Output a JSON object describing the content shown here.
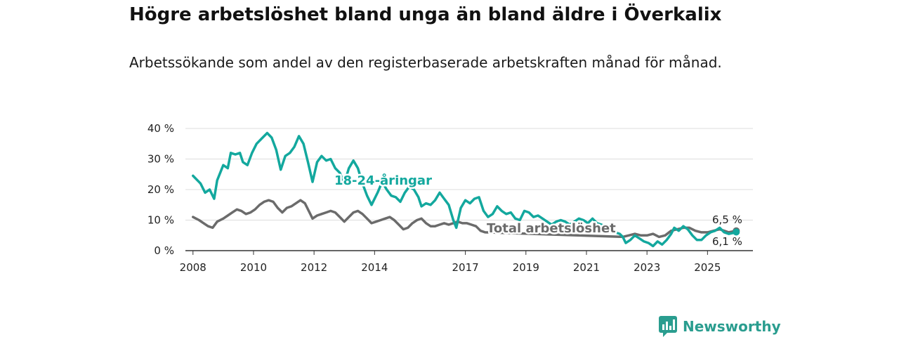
{
  "title": "Högre arbetslöshet bland unga än bland äldre i Överkalix",
  "subtitle": "Arbetssökande som andel av den registerbaserade arbetskraften månad för månad.",
  "brand": {
    "name": "Newsworthy"
  },
  "colors": {
    "youth": "#13a89e",
    "total": "#6b6b6b",
    "grid": "#dddddd",
    "axis": "#333333",
    "brand": "#2a9d8f"
  },
  "chart_data": {
    "type": "line",
    "title": "Högre arbetslöshet bland unga än bland äldre i Överkalix",
    "xlabel": "",
    "ylabel": "",
    "xlim": [
      2007.75,
      2026.5
    ],
    "ylim": [
      0,
      40
    ],
    "y_ticks": [
      0,
      10,
      20,
      30,
      40
    ],
    "y_tick_labels": [
      "0 %",
      "10 %",
      "20 %",
      "30 %",
      "40 %"
    ],
    "x_ticks": [
      2008,
      2010,
      2012,
      2014,
      2017,
      2019,
      2021,
      2023,
      2025
    ],
    "x_tick_labels": [
      "2008",
      "2010",
      "2012",
      "2014",
      "2017",
      "2019",
      "2021",
      "2023",
      "2025"
    ],
    "series": [
      {
        "name": "18-24-åringar",
        "label": "18-24-åringar",
        "end_value": 6.1,
        "end_label": "6,1 %",
        "points": [
          [
            2008.0,
            24.5
          ],
          [
            2008.25,
            22.0
          ],
          [
            2008.4,
            19.0
          ],
          [
            2008.55,
            20.0
          ],
          [
            2008.7,
            17.0
          ],
          [
            2008.8,
            23.0
          ],
          [
            2009.0,
            28.0
          ],
          [
            2009.15,
            27.0
          ],
          [
            2009.25,
            32.0
          ],
          [
            2009.4,
            31.5
          ],
          [
            2009.55,
            32.0
          ],
          [
            2009.65,
            29.0
          ],
          [
            2009.8,
            28.0
          ],
          [
            2009.95,
            32.0
          ],
          [
            2010.1,
            35.0
          ],
          [
            2010.3,
            37.0
          ],
          [
            2010.45,
            38.5
          ],
          [
            2010.6,
            37.0
          ],
          [
            2010.75,
            33.0
          ],
          [
            2010.9,
            26.5
          ],
          [
            2011.05,
            31.0
          ],
          [
            2011.2,
            32.0
          ],
          [
            2011.35,
            34.0
          ],
          [
            2011.5,
            37.5
          ],
          [
            2011.65,
            35.0
          ],
          [
            2011.8,
            29.0
          ],
          [
            2011.95,
            22.5
          ],
          [
            2012.1,
            29.0
          ],
          [
            2012.25,
            31.0
          ],
          [
            2012.4,
            29.5
          ],
          [
            2012.55,
            30.0
          ],
          [
            2012.7,
            27.0
          ],
          [
            2012.85,
            25.5
          ],
          [
            2013.0,
            22.0
          ],
          [
            2013.15,
            27.0
          ],
          [
            2013.3,
            29.5
          ],
          [
            2013.45,
            27.0
          ],
          [
            2013.6,
            22.0
          ],
          [
            2013.75,
            18.0
          ],
          [
            2013.9,
            15.0
          ],
          [
            2014.1,
            19.0
          ],
          [
            2014.25,
            22.5
          ],
          [
            2014.4,
            20.0
          ],
          [
            2014.55,
            18.0
          ],
          [
            2014.7,
            17.5
          ],
          [
            2014.85,
            16.0
          ],
          [
            2015.0,
            19.0
          ],
          [
            2015.15,
            21.0
          ],
          [
            2015.3,
            20.0
          ],
          [
            2015.45,
            17.5
          ],
          [
            2015.55,
            14.5
          ],
          [
            2015.7,
            15.5
          ],
          [
            2015.85,
            15.0
          ],
          [
            2016.0,
            16.5
          ],
          [
            2016.15,
            19.0
          ],
          [
            2016.3,
            17.0
          ],
          [
            2016.45,
            15.0
          ],
          [
            2016.6,
            10.0
          ],
          [
            2016.7,
            7.5
          ],
          [
            2016.85,
            14.0
          ],
          [
            2017.0,
            16.5
          ],
          [
            2017.15,
            15.5
          ],
          [
            2017.3,
            17.0
          ],
          [
            2017.45,
            17.5
          ],
          [
            2017.6,
            13.0
          ],
          [
            2017.75,
            11.0
          ],
          [
            2017.9,
            12.0
          ],
          [
            2018.05,
            14.5
          ],
          [
            2018.2,
            13.0
          ],
          [
            2018.35,
            12.0
          ],
          [
            2018.5,
            12.5
          ],
          [
            2018.65,
            10.5
          ],
          [
            2018.8,
            10.0
          ],
          [
            2018.95,
            13.0
          ],
          [
            2019.1,
            12.5
          ],
          [
            2019.25,
            11.0
          ],
          [
            2019.4,
            11.5
          ],
          [
            2019.55,
            10.5
          ],
          [
            2019.7,
            9.5
          ],
          [
            2019.85,
            8.5
          ],
          [
            2020.0,
            9.5
          ],
          [
            2020.15,
            10.0
          ],
          [
            2020.3,
            9.5
          ],
          [
            2020.45,
            8.5
          ],
          [
            2020.6,
            9.5
          ],
          [
            2020.75,
            10.5
          ],
          [
            2020.9,
            10.0
          ],
          [
            2021.05,
            9.0
          ],
          [
            2021.2,
            10.5
          ],
          [
            2021.35,
            9.0
          ],
          [
            2021.5,
            8.5
          ],
          [
            2021.65,
            7.5
          ],
          [
            2021.8,
            6.5
          ],
          [
            2021.95,
            6.0
          ],
          [
            2022.1,
            5.5
          ],
          [
            2022.2,
            4.5
          ],
          [
            2022.3,
            2.5
          ],
          [
            2022.45,
            3.5
          ],
          [
            2022.6,
            5.0
          ],
          [
            2022.75,
            4.0
          ],
          [
            2022.9,
            3.0
          ],
          [
            2023.05,
            2.5
          ],
          [
            2023.2,
            1.5
          ],
          [
            2023.35,
            3.0
          ],
          [
            2023.5,
            2.0
          ],
          [
            2023.65,
            3.5
          ],
          [
            2023.8,
            5.5
          ],
          [
            2023.9,
            7.5
          ],
          [
            2024.05,
            6.5
          ],
          [
            2024.2,
            8.0
          ],
          [
            2024.35,
            7.0
          ],
          [
            2024.5,
            5.0
          ],
          [
            2024.65,
            3.5
          ],
          [
            2024.8,
            3.5
          ],
          [
            2024.95,
            5.0
          ],
          [
            2025.1,
            6.0
          ],
          [
            2025.25,
            6.5
          ],
          [
            2025.4,
            7.5
          ],
          [
            2025.55,
            6.0
          ],
          [
            2025.7,
            5.5
          ],
          [
            2025.85,
            5.8
          ],
          [
            2025.95,
            6.1
          ]
        ]
      },
      {
        "name": "Total arbetslöshet",
        "label": "Total arbetslöshet",
        "end_value": 6.5,
        "end_label": "6,5 %",
        "points": [
          [
            2008.0,
            11.0
          ],
          [
            2008.2,
            10.0
          ],
          [
            2008.35,
            9.0
          ],
          [
            2008.5,
            8.0
          ],
          [
            2008.65,
            7.5
          ],
          [
            2008.8,
            9.5
          ],
          [
            2009.0,
            10.5
          ],
          [
            2009.15,
            11.5
          ],
          [
            2009.3,
            12.5
          ],
          [
            2009.45,
            13.5
          ],
          [
            2009.6,
            13.0
          ],
          [
            2009.75,
            12.0
          ],
          [
            2009.9,
            12.5
          ],
          [
            2010.05,
            13.5
          ],
          [
            2010.2,
            15.0
          ],
          [
            2010.35,
            16.0
          ],
          [
            2010.5,
            16.5
          ],
          [
            2010.65,
            16.0
          ],
          [
            2010.8,
            14.0
          ],
          [
            2010.95,
            12.5
          ],
          [
            2011.1,
            14.0
          ],
          [
            2011.25,
            14.5
          ],
          [
            2011.4,
            15.5
          ],
          [
            2011.55,
            16.5
          ],
          [
            2011.7,
            15.5
          ],
          [
            2011.85,
            12.5
          ],
          [
            2011.95,
            10.5
          ],
          [
            2012.1,
            11.5
          ],
          [
            2012.25,
            12.0
          ],
          [
            2012.4,
            12.5
          ],
          [
            2012.55,
            13.0
          ],
          [
            2012.7,
            12.5
          ],
          [
            2012.85,
            11.0
          ],
          [
            2013.0,
            9.5
          ],
          [
            2013.15,
            11.0
          ],
          [
            2013.3,
            12.5
          ],
          [
            2013.45,
            13.0
          ],
          [
            2013.6,
            12.0
          ],
          [
            2013.75,
            10.5
          ],
          [
            2013.9,
            9.0
          ],
          [
            2014.05,
            9.5
          ],
          [
            2014.2,
            10.0
          ],
          [
            2014.35,
            10.5
          ],
          [
            2014.5,
            11.0
          ],
          [
            2014.65,
            10.0
          ],
          [
            2014.8,
            8.5
          ],
          [
            2014.95,
            7.0
          ],
          [
            2015.1,
            7.5
          ],
          [
            2015.25,
            9.0
          ],
          [
            2015.4,
            10.0
          ],
          [
            2015.55,
            10.5
          ],
          [
            2015.7,
            9.0
          ],
          [
            2015.85,
            8.0
          ],
          [
            2016.0,
            8.0
          ],
          [
            2016.15,
            8.5
          ],
          [
            2016.3,
            9.0
          ],
          [
            2016.45,
            8.5
          ],
          [
            2016.6,
            9.0
          ],
          [
            2016.75,
            9.5
          ],
          [
            2016.9,
            9.0
          ],
          [
            2017.05,
            9.0
          ],
          [
            2017.2,
            8.5
          ],
          [
            2017.35,
            8.0
          ],
          [
            2017.5,
            6.5
          ],
          [
            2017.65,
            6.0
          ],
          [
            2022.2,
            4.5
          ],
          [
            2022.4,
            5.0
          ],
          [
            2022.6,
            5.5
          ],
          [
            2022.8,
            5.0
          ],
          [
            2023.0,
            5.0
          ],
          [
            2023.2,
            5.5
          ],
          [
            2023.4,
            4.5
          ],
          [
            2023.6,
            5.0
          ],
          [
            2023.8,
            6.5
          ],
          [
            2024.0,
            7.0
          ],
          [
            2024.2,
            7.5
          ],
          [
            2024.4,
            7.5
          ],
          [
            2024.6,
            6.5
          ],
          [
            2024.8,
            6.0
          ],
          [
            2025.0,
            6.0
          ],
          [
            2025.2,
            6.5
          ],
          [
            2025.4,
            7.0
          ],
          [
            2025.55,
            6.5
          ],
          [
            2025.7,
            6.0
          ],
          [
            2025.85,
            6.3
          ],
          [
            2025.95,
            6.5
          ]
        ]
      }
    ]
  }
}
